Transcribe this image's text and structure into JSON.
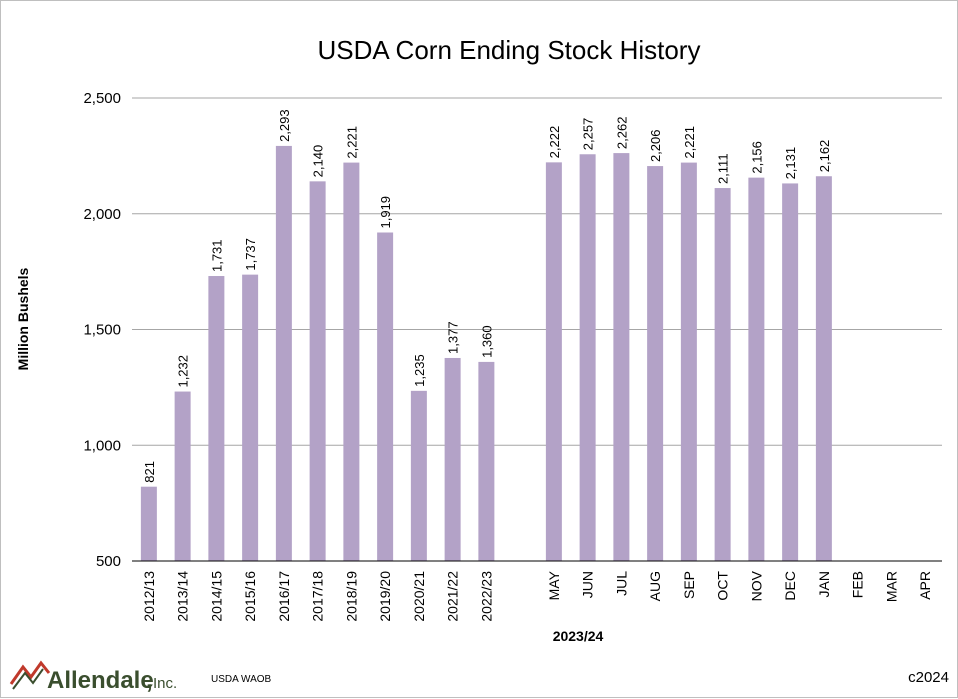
{
  "chart_data": {
    "type": "bar",
    "title": "USDA Corn Ending Stock History",
    "ylabel": "Million Bushels",
    "ylim": [
      500,
      2500
    ],
    "yticks": [
      "500",
      "1,000",
      "1,500",
      "2,000",
      "2,500"
    ],
    "grid": true,
    "bar_color": "#b3a2c7",
    "categories": [
      "2012/13",
      "2013/14",
      "2014/15",
      "2015/16",
      "2016/17",
      "2017/18",
      "2018/19",
      "2019/20",
      "2020/21",
      "2021/22",
      "2022/23",
      "",
      "MAY",
      "JUN",
      "JUL",
      "AUG",
      "SEP",
      "OCT",
      "NOV",
      "DEC",
      "JAN",
      "FEB",
      "MAR",
      "APR"
    ],
    "values": [
      821,
      1232,
      1731,
      1737,
      2293,
      2140,
      2221,
      1919,
      1235,
      1377,
      1360,
      null,
      2222,
      2257,
      2262,
      2206,
      2221,
      2111,
      2156,
      2131,
      2162,
      null,
      null,
      null
    ],
    "data_labels": [
      "821",
      "1,232",
      "1,731",
      "1,737",
      "2,293",
      "2,140",
      "2,221",
      "1,919",
      "1,235",
      "1,377",
      "1,360",
      "",
      "2,222",
      "2,257",
      "2,262",
      "2,206",
      "2,221",
      "2,111",
      "2,156",
      "2,131",
      "2,162",
      "",
      "",
      ""
    ],
    "group_label": "2023/24"
  },
  "footer": {
    "logo": "Allendale",
    "logo_suffix": "Inc.",
    "source": "USDA WAOB",
    "copyright": "c2024"
  }
}
